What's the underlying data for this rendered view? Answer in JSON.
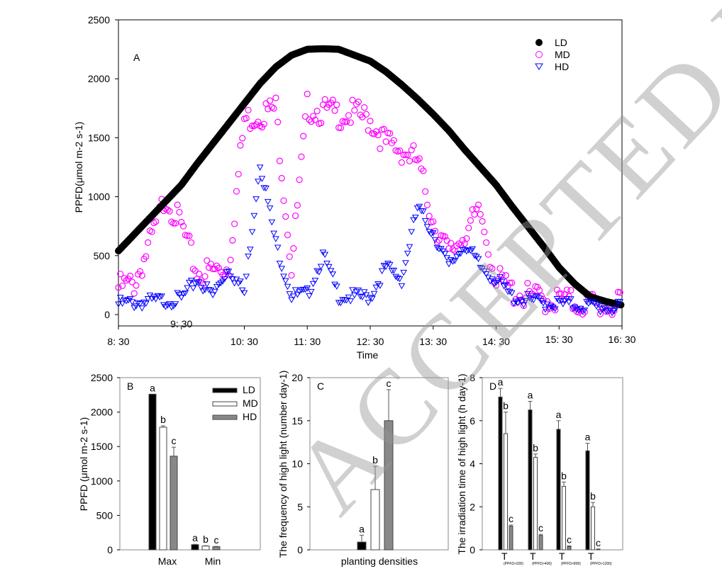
{
  "watermark": "ACCEPTED MANUSCRIPT",
  "chart_data": [
    {
      "panel": "A",
      "type": "scatter",
      "ylabel": "PPFD(μmol m-2 s-1)",
      "xlabel": "Time",
      "ylim": [
        -100,
        2500
      ],
      "yticks": [
        0,
        500,
        1000,
        1500,
        2000,
        2500
      ],
      "xticks": [
        "8: 30",
        "9: 30",
        "10: 30",
        "11: 30",
        "12: 30",
        "13: 30",
        "14: 30",
        "15: 30",
        "16: 30"
      ],
      "legend": "top-right",
      "x": [
        "8:30",
        "8:45",
        "9:00",
        "9:15",
        "9:30",
        "9:45",
        "10:00",
        "10:15",
        "10:30",
        "10:45",
        "11:00",
        "11:15",
        "11:30",
        "11:45",
        "12:00",
        "12:15",
        "12:30",
        "12:45",
        "13:00",
        "13:15",
        "13:30",
        "13:45",
        "14:00",
        "14:15",
        "14:30",
        "14:45",
        "15:00",
        "15:15",
        "15:30",
        "15:45",
        "16:00",
        "16:15",
        "16:30"
      ],
      "series": [
        {
          "name": "LD",
          "marker": "filled-circle",
          "color": "#000000",
          "values": [
            540,
            680,
            820,
            960,
            1100,
            1280,
            1450,
            1620,
            1790,
            1960,
            2100,
            2200,
            2250,
            2255,
            2250,
            2200,
            2150,
            2060,
            1950,
            1830,
            1700,
            1560,
            1400,
            1250,
            1100,
            920,
            750,
            580,
            400,
            260,
            150,
            110,
            80
          ]
        },
        {
          "name": "MD",
          "marker": "open-circle",
          "color": "#ff00ff",
          "values": [
            230,
            260,
            600,
            1000,
            750,
            350,
            370,
            400,
            1650,
            1700,
            1750,
            400,
            1760,
            1720,
            1700,
            1700,
            1650,
            1450,
            1400,
            1300,
            800,
            500,
            700,
            850,
            300,
            200,
            150,
            130,
            120,
            100,
            90,
            80,
            70
          ]
        },
        {
          "name": "HD",
          "marker": "open-triangle",
          "color": "#0000ff",
          "values": [
            90,
            100,
            110,
            120,
            130,
            300,
            160,
            400,
            180,
            1300,
            600,
            160,
            170,
            500,
            160,
            150,
            150,
            400,
            300,
            900,
            700,
            400,
            600,
            400,
            300,
            150,
            120,
            100,
            90,
            80,
            70,
            60,
            50
          ]
        }
      ],
      "panel_label": "A"
    },
    {
      "panel": "B",
      "type": "bar",
      "ylabel": "PPFD (μmol m-2 s-1)",
      "ylim": [
        0,
        2500
      ],
      "yticks": [
        0,
        500,
        1000,
        1500,
        2000,
        2500
      ],
      "categories": [
        "Max",
        "Min"
      ],
      "legend": "top-right",
      "series": [
        {
          "name": "LD",
          "color": "#000000",
          "values": [
            2260,
            75
          ],
          "errors": [
            0,
            5
          ],
          "letters": [
            "a",
            "a"
          ]
        },
        {
          "name": "MD",
          "color": "#ffffff",
          "values": [
            1780,
            55
          ],
          "errors": [
            20,
            5
          ],
          "letters": [
            "b",
            "b"
          ]
        },
        {
          "name": "HD",
          "color": "#888888",
          "values": [
            1360,
            45
          ],
          "errors": [
            130,
            5
          ],
          "letters": [
            "c",
            "c"
          ]
        }
      ],
      "panel_label": "B"
    },
    {
      "panel": "C",
      "type": "bar",
      "ylabel": "The frequency of high light (number day-1)",
      "xlabel": "planting densities",
      "ylim": [
        0,
        20
      ],
      "yticks": [
        0,
        5,
        10,
        15,
        20
      ],
      "categories": [
        ""
      ],
      "series": [
        {
          "name": "LD",
          "color": "#000000",
          "values": [
            0.9
          ],
          "errors": [
            0.8
          ],
          "letters": [
            "a"
          ]
        },
        {
          "name": "MD",
          "color": "#ffffff",
          "values": [
            7
          ],
          "errors": [
            2.7
          ],
          "letters": [
            "b"
          ]
        },
        {
          "name": "HD",
          "color": "#888888",
          "values": [
            15
          ],
          "errors": [
            3.6
          ],
          "letters": [
            "c"
          ]
        }
      ],
      "panel_label": "C"
    },
    {
      "panel": "D",
      "type": "bar",
      "ylabel": "The irradiation time of high light (h day-1)",
      "ylim": [
        0,
        8
      ],
      "yticks": [
        0,
        2,
        4,
        6,
        8
      ],
      "categories": [
        "T(PPFD>200)",
        "T(PPFD>400)",
        "T(PPFD>800)",
        "T(PPFD>1200)"
      ],
      "category_main": "T",
      "category_sub": [
        "(PPFD>200)",
        "(PPFD>400)",
        "(PPFD>800)",
        "(PPFD>1200)"
      ],
      "series": [
        {
          "name": "LD",
          "color": "#000000",
          "values": [
            7.1,
            6.5,
            5.6,
            4.6
          ],
          "errors": [
            0.4,
            0.4,
            0.4,
            0.35
          ],
          "letters": [
            "a",
            "a",
            "a",
            "a"
          ]
        },
        {
          "name": "MD",
          "color": "#ffffff",
          "values": [
            5.4,
            4.3,
            2.95,
            2.0
          ],
          "errors": [
            1.0,
            0.15,
            0.2,
            0.2
          ],
          "letters": [
            "b",
            "b",
            "b",
            "b"
          ]
        },
        {
          "name": "HD",
          "color": "#888888",
          "values": [
            1.1,
            0.67,
            0.15,
            0.03
          ],
          "errors": [
            0.05,
            0.05,
            0.03,
            0.01
          ],
          "letters": [
            "c",
            "c",
            "c",
            "c"
          ]
        }
      ],
      "panel_label": "D"
    }
  ]
}
